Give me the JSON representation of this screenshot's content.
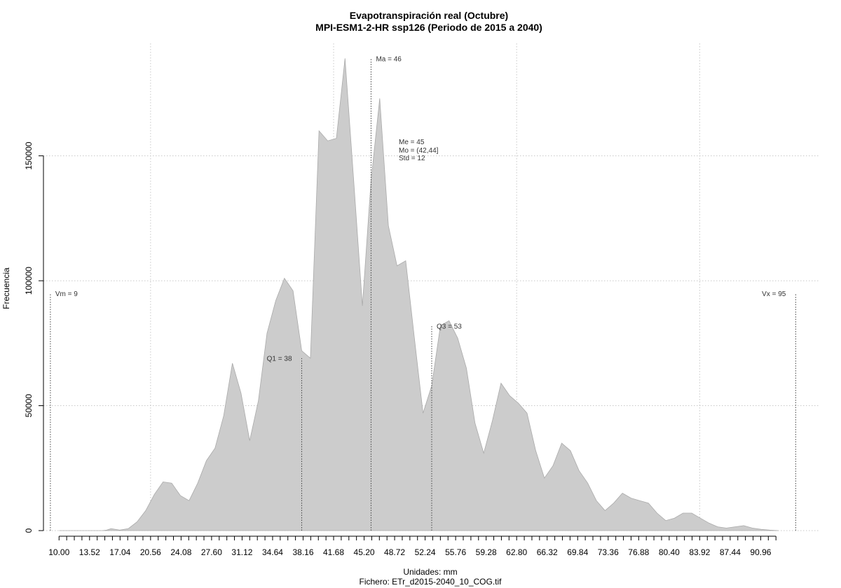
{
  "chart_data": {
    "type": "area",
    "title": "Evapotranspiración real (Octubre)",
    "subtitle": "MPI-ESM1-2-HR ssp126 (Periodo de 2015 a 2040)",
    "xlabel": "Unidades: mm",
    "ylabel": "Frecuencia",
    "caption": "Fichero: ETr_d2015-2040_10_COG.tif",
    "xlim": [
      8.2,
      97.8
    ],
    "ylim": [
      0,
      195000
    ],
    "grid": true,
    "fill_color": "#cccccc",
    "x_ticks": [
      10.0,
      10.88,
      11.76,
      12.64,
      13.52,
      14.4,
      15.28,
      16.16,
      17.04,
      17.92,
      18.8,
      19.68,
      20.56,
      21.44,
      22.32,
      23.2,
      24.08,
      24.96,
      25.84,
      26.72,
      27.6,
      28.48,
      29.36,
      30.24,
      31.12,
      32.0,
      32.88,
      33.76,
      34.64,
      35.52,
      36.4,
      37.28,
      38.16,
      39.04,
      39.92,
      40.8,
      41.68,
      42.56,
      43.44,
      44.32,
      45.2,
      46.08,
      46.96,
      47.84,
      48.72,
      49.6,
      50.48,
      51.36,
      52.24,
      53.12,
      54.0,
      54.88,
      55.76,
      56.64,
      57.52,
      58.4,
      59.28,
      60.16,
      61.04,
      61.92,
      62.8,
      63.68,
      64.56,
      65.44,
      66.32,
      67.2,
      68.08,
      68.96,
      69.84,
      70.72,
      71.6,
      72.48,
      73.36,
      74.24,
      75.12,
      76.0,
      76.88,
      77.76,
      78.64,
      79.52,
      80.4,
      81.28,
      82.16,
      83.04,
      83.92,
      84.8,
      85.68,
      86.56,
      87.44,
      88.32,
      89.2,
      90.08,
      90.96,
      91.84,
      92.72
    ],
    "x_tick_labels": [
      "10.00",
      "13.52",
      "17.04",
      "20.56",
      "24.08",
      "27.60",
      "31.12",
      "34.64",
      "38.16",
      "41.68",
      "45.20",
      "48.72",
      "52.24",
      "55.76",
      "59.28",
      "62.80",
      "66.32",
      "69.84",
      "73.36",
      "76.88",
      "80.40",
      "83.92",
      "87.44",
      "90.96"
    ],
    "x_grid": [
      20.56,
      41.68,
      62.8,
      83.92
    ],
    "y_ticks": [
      0,
      50000,
      100000,
      150000
    ],
    "y_tick_labels": [
      "0",
      "50000",
      "100000",
      "150000"
    ],
    "x": [
      10.0,
      11.0,
      12.0,
      13.0,
      14.0,
      15.0,
      15.5,
      16.0,
      17.0,
      18.0,
      19.0,
      20.0,
      21.0,
      22.0,
      23.0,
      24.0,
      25.0,
      26.0,
      27.0,
      28.0,
      29.0,
      30.0,
      31.0,
      32.0,
      33.0,
      34.0,
      35.0,
      36.0,
      37.0,
      38.0,
      39.0,
      40.0,
      41.0,
      42.0,
      43.0,
      44.0,
      45.0,
      46.0,
      47.0,
      48.0,
      49.0,
      50.0,
      51.0,
      52.0,
      53.0,
      54.0,
      55.0,
      56.0,
      57.0,
      58.0,
      59.0,
      60.0,
      61.0,
      62.0,
      63.0,
      64.0,
      65.0,
      66.0,
      67.0,
      68.0,
      69.0,
      70.0,
      71.0,
      72.0,
      73.0,
      74.0,
      75.0,
      76.0,
      77.0,
      78.0,
      79.0,
      80.0,
      81.0,
      82.0,
      83.0,
      84.0,
      85.0,
      86.0,
      87.0,
      88.0,
      89.0,
      90.0,
      91.0,
      92.0,
      93.0
    ],
    "y": [
      0,
      0,
      0,
      0,
      0,
      0,
      200,
      800,
      200,
      800,
      3500,
      8000,
      14500,
      19500,
      19000,
      14000,
      12000,
      19000,
      28000,
      33000,
      46000,
      67000,
      55000,
      36000,
      52000,
      79000,
      92000,
      101000,
      96000,
      72000,
      69000,
      160000,
      156000,
      157000,
      189000,
      140000,
      90000,
      140000,
      173000,
      122000,
      106000,
      108000,
      77000,
      47000,
      58000,
      82000,
      84000,
      77000,
      65000,
      43000,
      31000,
      44000,
      59000,
      54000,
      51000,
      47000,
      32000,
      21000,
      26000,
      35000,
      32000,
      24000,
      19000,
      12000,
      8000,
      11000,
      15000,
      13000,
      12000,
      11000,
      7000,
      4000,
      5000,
      7000,
      7000,
      5000,
      3000,
      1500,
      1000,
      1500,
      2000,
      1000,
      500,
      200,
      0
    ],
    "markers": [
      {
        "x": 9,
        "y_top": 95000,
        "label": "Vm = 9",
        "label_side": "right"
      },
      {
        "x": 38,
        "y_top": 69000,
        "label": "Q1 = 38",
        "label_side": "left"
      },
      {
        "x": 46,
        "y_top": 189000,
        "label": "Ma = 46",
        "label_side": "right"
      },
      {
        "x": 53,
        "y_top": 82000,
        "label": "Q3 = 53",
        "label_side": "right"
      },
      {
        "x": 95,
        "y_top": 95000,
        "label": "Vx = 95",
        "label_side": "left"
      }
    ],
    "stats": [
      "Me = 45",
      "Mo = (42,44]",
      "Std = 12"
    ]
  }
}
